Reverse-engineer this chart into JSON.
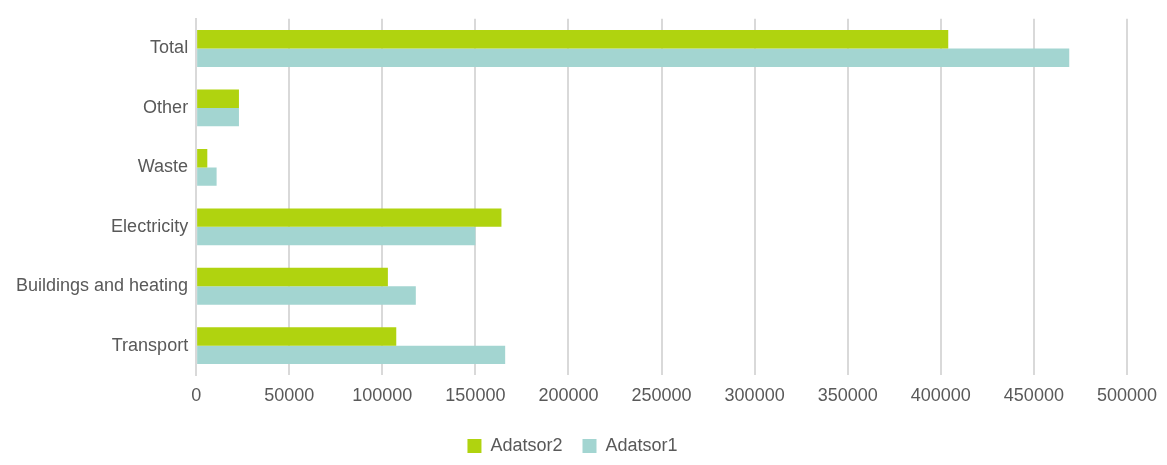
{
  "chart_data": {
    "type": "bar",
    "orientation": "horizontal",
    "categories": [
      "Total",
      "Other",
      "Waste",
      "Electricity",
      "Buildings and heating",
      "Transport"
    ],
    "series": [
      {
        "name": "Adatsor2",
        "color": "#b0d30f",
        "values": [
          404000,
          23000,
          6000,
          164000,
          103000,
          107500
        ]
      },
      {
        "name": "Adatsor1",
        "color": "#a3d5d1",
        "values": [
          469000,
          23000,
          11000,
          150000,
          118000,
          166000
        ]
      }
    ],
    "xlim": [
      0,
      500000
    ],
    "xticks": [
      0,
      50000,
      100000,
      150000,
      200000,
      250000,
      300000,
      350000,
      400000,
      450000,
      500000
    ],
    "grid": "x",
    "legend": "bottom"
  }
}
